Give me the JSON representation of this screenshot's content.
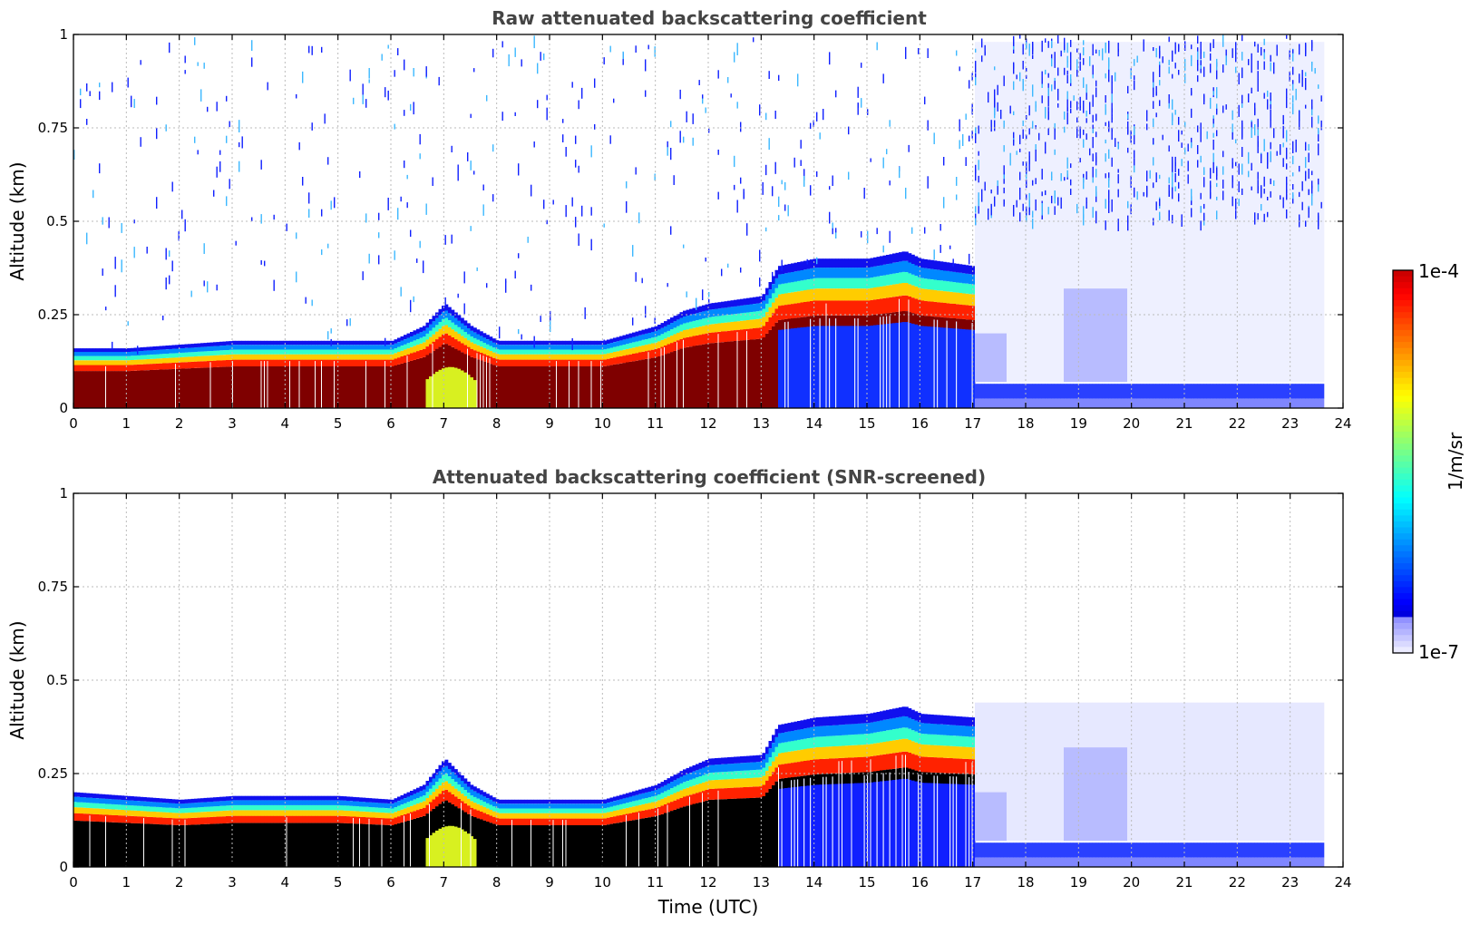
{
  "chart_data": [
    {
      "type": "heatmap",
      "title": "Raw attenuated backscattering coefficient",
      "xlabel": "",
      "ylabel": "Altitude (km)",
      "xlim": [
        0,
        24
      ],
      "ylim": [
        0,
        1
      ],
      "x_ticks": [
        "0",
        "1",
        "2",
        "3",
        "4",
        "5",
        "6",
        "7",
        "8",
        "9",
        "10",
        "11",
        "12",
        "13",
        "14",
        "15",
        "16",
        "17",
        "18",
        "19",
        "20",
        "21",
        "22",
        "23",
        "24"
      ],
      "y_ticks": [
        "0",
        "0.25",
        "0.5",
        "0.75",
        "1"
      ],
      "grid": true,
      "data_end_time": 23.6,
      "colorscale": {
        "min": "1e-7",
        "max": "1e-4",
        "label": "1/m/sr",
        "palette": "jet"
      },
      "layer_top_km": [
        [
          0,
          0.16
        ],
        [
          1,
          0.16
        ],
        [
          2,
          0.17
        ],
        [
          3,
          0.18
        ],
        [
          4,
          0.18
        ],
        [
          5,
          0.18
        ],
        [
          6,
          0.18
        ],
        [
          6.6,
          0.22
        ],
        [
          7.0,
          0.28
        ],
        [
          7.5,
          0.22
        ],
        [
          8,
          0.18
        ],
        [
          9,
          0.18
        ],
        [
          10,
          0.18
        ],
        [
          11,
          0.22
        ],
        [
          11.5,
          0.26
        ],
        [
          12,
          0.28
        ],
        [
          13,
          0.3
        ],
        [
          13.3,
          0.38
        ],
        [
          14,
          0.4
        ],
        [
          15,
          0.4
        ],
        [
          15.7,
          0.42
        ],
        [
          16,
          0.4
        ],
        [
          17,
          0.38
        ]
      ],
      "description_regions": [
        {
          "from": 0,
          "to": 6.6,
          "core_top_km": 0.1
        },
        {
          "from": 6.6,
          "to": 10.9,
          "core_top_km": 0.14
        },
        {
          "from": 10.9,
          "to": 13.3,
          "core_top_km": 0.18
        },
        {
          "from": 13.3,
          "to": 17.0,
          "core_top_km": 0.3
        },
        {
          "from": 17.0,
          "to": 23.6,
          "core_top_km": 0.06
        }
      ]
    },
    {
      "type": "heatmap",
      "title": "Attenuated backscattering coefficient (SNR-screened)",
      "xlabel": "Time (UTC)",
      "ylabel": "Altitude (km)",
      "xlim": [
        0,
        24
      ],
      "ylim": [
        0,
        1
      ],
      "x_ticks": [
        "0",
        "1",
        "2",
        "3",
        "4",
        "5",
        "6",
        "7",
        "8",
        "9",
        "10",
        "11",
        "12",
        "13",
        "14",
        "15",
        "16",
        "17",
        "18",
        "19",
        "20",
        "21",
        "22",
        "23",
        "24"
      ],
      "y_ticks": [
        "0",
        "0.25",
        "0.5",
        "0.75",
        "1"
      ],
      "grid": true,
      "data_end_time": 23.6,
      "colorscale": {
        "min": "1e-7",
        "max": "1e-4",
        "label": "1/m/sr",
        "palette": "jet"
      },
      "layer_top_km": [
        [
          0,
          0.2
        ],
        [
          1,
          0.19
        ],
        [
          2,
          0.18
        ],
        [
          3,
          0.19
        ],
        [
          4,
          0.19
        ],
        [
          5,
          0.19
        ],
        [
          6,
          0.18
        ],
        [
          6.6,
          0.22
        ],
        [
          7.0,
          0.29
        ],
        [
          7.5,
          0.22
        ],
        [
          8,
          0.18
        ],
        [
          9,
          0.18
        ],
        [
          10,
          0.18
        ],
        [
          11,
          0.22
        ],
        [
          11.5,
          0.26
        ],
        [
          12,
          0.29
        ],
        [
          13,
          0.3
        ],
        [
          13.3,
          0.38
        ],
        [
          14,
          0.4
        ],
        [
          15,
          0.41
        ],
        [
          15.7,
          0.43
        ],
        [
          16,
          0.41
        ],
        [
          17,
          0.4
        ]
      ]
    }
  ],
  "colorbar": {
    "top_label": "1e-4",
    "bottom_label": "1e-7",
    "unit_label": "1/m/sr"
  }
}
